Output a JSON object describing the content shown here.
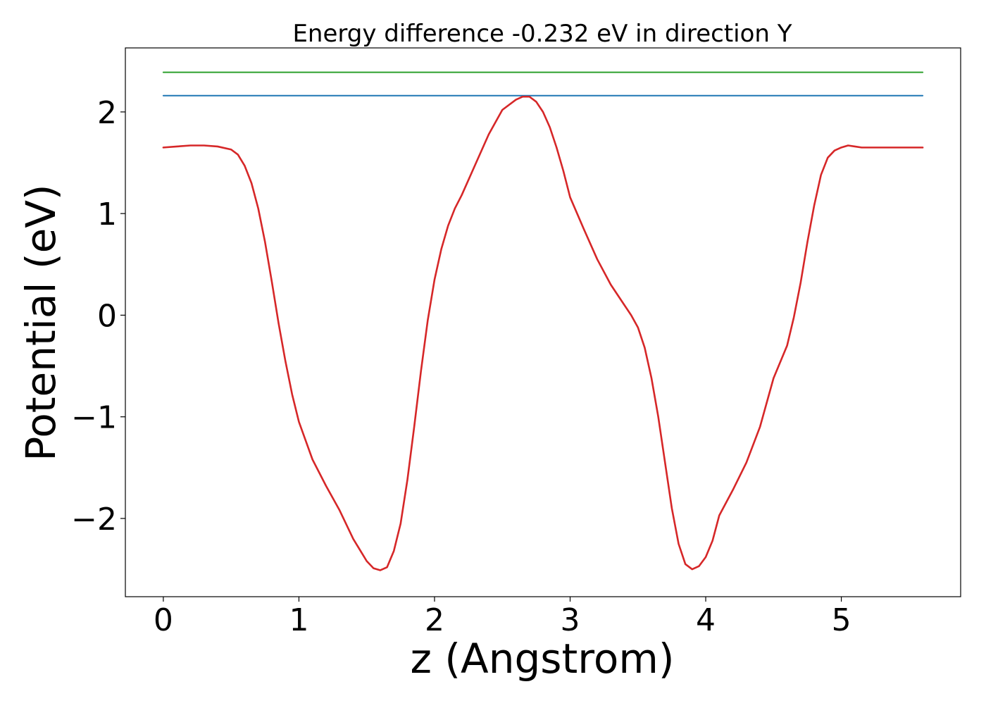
{
  "chart_data": {
    "type": "line",
    "title": "Energy difference -0.232 eV in direction Y",
    "xlabel": "z (Angstrom)",
    "ylabel": "Potential (eV)",
    "xlim": [
      -0.28,
      5.88
    ],
    "ylim": [
      -2.77,
      2.63
    ],
    "xticks": [
      0,
      1,
      2,
      3,
      4,
      5
    ],
    "xtick_labels": [
      "0",
      "1",
      "2",
      "3",
      "4",
      "5"
    ],
    "yticks": [
      -2,
      -1,
      0,
      1,
      2
    ],
    "ytick_labels": [
      "−2",
      "−1",
      "0",
      "1",
      "2"
    ],
    "grid": false,
    "series": [
      {
        "color": "#2ca02c",
        "x": [
          0,
          5.6
        ],
        "y": [
          2.39,
          2.39
        ]
      },
      {
        "color": "#1f77b4",
        "x": [
          0,
          5.6
        ],
        "y": [
          2.16,
          2.16
        ]
      },
      {
        "color": "#d62728",
        "x": [
          0,
          0.1,
          0.2,
          0.3,
          0.4,
          0.5,
          0.55,
          0.6,
          0.65,
          0.7,
          0.75,
          0.8,
          0.85,
          0.9,
          0.95,
          1.0,
          1.1,
          1.2,
          1.3,
          1.4,
          1.5,
          1.55,
          1.6,
          1.65,
          1.7,
          1.75,
          1.8,
          1.85,
          1.9,
          1.95,
          2.0,
          2.05,
          2.1,
          2.15,
          2.2,
          2.3,
          2.4,
          2.5,
          2.6,
          2.65,
          2.7,
          2.75,
          2.8,
          2.85,
          2.9,
          2.95,
          3.0,
          3.1,
          3.2,
          3.3,
          3.4,
          3.45,
          3.5,
          3.55,
          3.6,
          3.65,
          3.7,
          3.75,
          3.8,
          3.85,
          3.9,
          3.95,
          4.0,
          4.05,
          4.1,
          4.2,
          4.3,
          4.4,
          4.5,
          4.6,
          4.65,
          4.7,
          4.75,
          4.8,
          4.85,
          4.9,
          4.95,
          5.0,
          5.05,
          5.1,
          5.15,
          5.2,
          5.3,
          5.4,
          5.5,
          5.6
        ],
        "y": [
          1.65,
          1.66,
          1.67,
          1.67,
          1.66,
          1.63,
          1.58,
          1.47,
          1.3,
          1.05,
          0.72,
          0.33,
          -0.08,
          -0.45,
          -0.78,
          -1.05,
          -1.42,
          -1.68,
          -1.92,
          -2.2,
          -2.42,
          -2.49,
          -2.51,
          -2.48,
          -2.32,
          -2.05,
          -1.62,
          -1.1,
          -0.55,
          -0.05,
          0.35,
          0.65,
          0.88,
          1.05,
          1.18,
          1.48,
          1.78,
          2.02,
          2.12,
          2.15,
          2.15,
          2.1,
          2.0,
          1.85,
          1.65,
          1.42,
          1.16,
          0.85,
          0.55,
          0.3,
          0.1,
          0.0,
          -0.12,
          -0.32,
          -0.62,
          -1.0,
          -1.45,
          -1.9,
          -2.25,
          -2.45,
          -2.5,
          -2.47,
          -2.38,
          -2.22,
          -1.97,
          -1.72,
          -1.45,
          -1.1,
          -0.62,
          -0.3,
          -0.02,
          0.32,
          0.72,
          1.08,
          1.38,
          1.55,
          1.62,
          1.65,
          1.67,
          1.66,
          1.65,
          1.65,
          1.65,
          1.65,
          1.65,
          1.65
        ]
      }
    ]
  }
}
